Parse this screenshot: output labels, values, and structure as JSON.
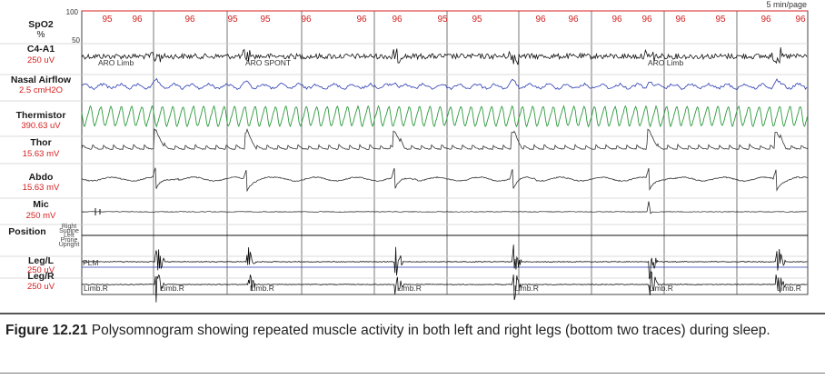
{
  "chart_data": {
    "type": "line",
    "page_label": "5 min/page",
    "spo2_axis": {
      "top": "100",
      "mid": "50"
    },
    "spo2_values": [
      "95",
      "96",
      "96",
      "95",
      "95",
      "96",
      "96",
      "96",
      "95",
      "95",
      "96",
      "96",
      "96",
      "96",
      "96",
      "95",
      "96",
      "96",
      "96",
      "95",
      "96"
    ],
    "channels": [
      {
        "name": "SpO2",
        "scale": "%",
        "color": "#d42020"
      },
      {
        "name": "C4-A1",
        "scale": "250 uV",
        "color": "#111111"
      },
      {
        "name": "Nasal Airflow",
        "scale": "2.5 cmH2O",
        "color": "#2a3bb0"
      },
      {
        "name": "Thermistor",
        "scale": "390.63 uV",
        "color": "#2e9a3e"
      },
      {
        "name": "Thor",
        "scale": "15.63 mV",
        "color": "#333333"
      },
      {
        "name": "Abdo",
        "scale": "15.63 mV",
        "color": "#333333"
      },
      {
        "name": "Mic",
        "scale": "250 mV",
        "color": "#111111"
      },
      {
        "name": "Position",
        "scale": "",
        "color": "#111111"
      },
      {
        "name": "Leg/L",
        "scale": "250 uV",
        "color": "#111111"
      },
      {
        "name": "Leg/R",
        "scale": "250 uV",
        "color": "#111111"
      }
    ],
    "position_states": [
      "Right",
      "Supine",
      "Left",
      "Prone",
      "Upright"
    ],
    "eeg_events": [
      "ARO Limb",
      "ARO SPONT",
      "ARO Limb"
    ],
    "plm_label": "PLM",
    "limb_events": [
      "Limb.R",
      "Limb.R",
      "Limb.R",
      "Limb.R",
      "Limb.R",
      "Limb.R",
      "Limb.R"
    ]
  },
  "caption": {
    "figure_number": "Figure 12.21",
    "text": "Polysomnogram showing repeated muscle activity in both left and right legs (bottom two traces) during sleep."
  }
}
